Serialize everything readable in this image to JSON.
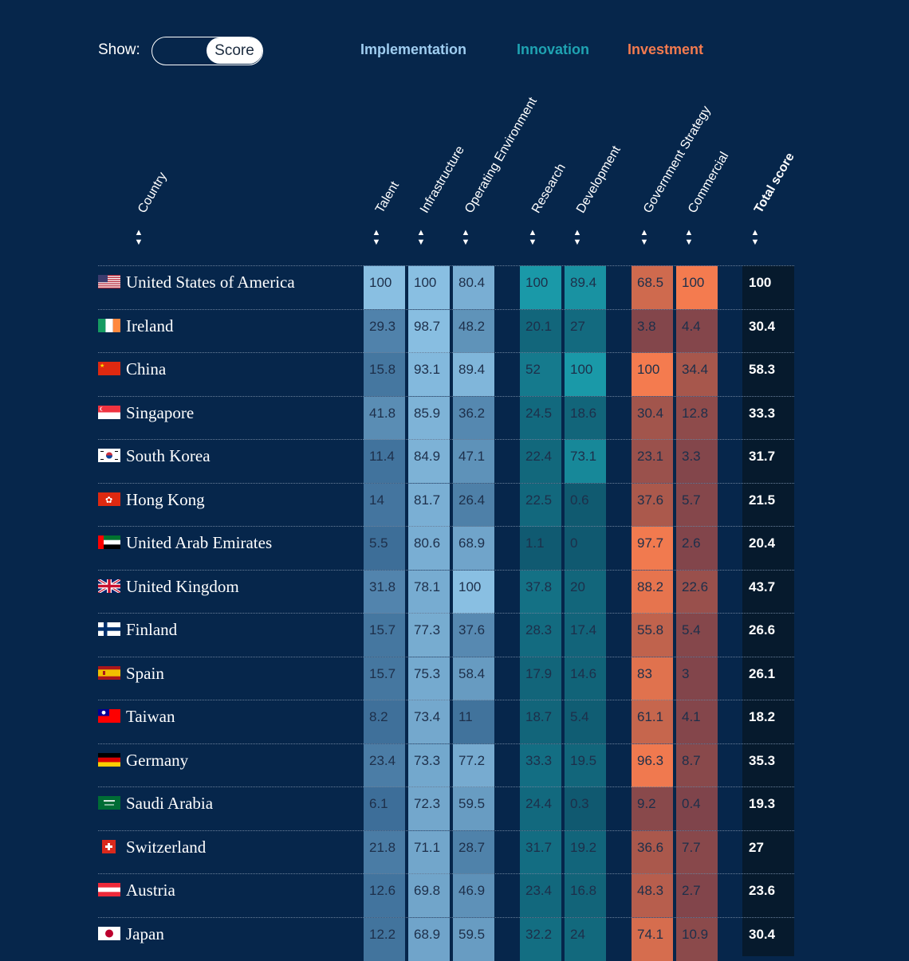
{
  "controls": {
    "show_label": "Show:",
    "toggle_value": "Score"
  },
  "colors": {
    "background": "#06264b",
    "implementation": "#8dc1e3",
    "innovation": "#1f96a6",
    "investment": "#f47b4f",
    "total": "#061a2d"
  },
  "chart_data": {
    "type": "table",
    "groups": [
      {
        "name": "Implementation",
        "color": "#7fb8de",
        "columns": [
          "Talent",
          "Infrastructure",
          "Operating Environment"
        ]
      },
      {
        "name": "Innovation",
        "color": "#1a99a8",
        "columns": [
          "Research",
          "Development"
        ]
      },
      {
        "name": "Investment",
        "color": "#f47b4f",
        "columns": [
          "Government Strategy",
          "Commercial"
        ]
      }
    ],
    "columns": [
      "Country",
      "Talent",
      "Infrastructure",
      "Operating Environment",
      "Research",
      "Development",
      "Government Strategy",
      "Commercial",
      "Total score"
    ],
    "rows": [
      {
        "country": "United States of America",
        "flag": "us-flag-icon",
        "values": [
          "100",
          "100",
          "80.4",
          "100",
          "89.4",
          "68.5",
          "100"
        ],
        "total": "100"
      },
      {
        "country": "Ireland",
        "flag": "ireland-flag-icon",
        "values": [
          "29.3",
          "98.7",
          "48.2",
          "20.1",
          "27",
          "3.8",
          "4.4"
        ],
        "total": "30.4"
      },
      {
        "country": "China",
        "flag": "china-flag-icon",
        "values": [
          "15.8",
          "93.1",
          "89.4",
          "52",
          "100",
          "100",
          "34.4"
        ],
        "total": "58.3"
      },
      {
        "country": "Singapore",
        "flag": "singapore-flag-icon",
        "values": [
          "41.8",
          "85.9",
          "36.2",
          "24.5",
          "18.6",
          "30.4",
          "12.8"
        ],
        "total": "33.3"
      },
      {
        "country": "South Korea",
        "flag": "south-korea-flag-icon",
        "values": [
          "11.4",
          "84.9",
          "47.1",
          "22.4",
          "73.1",
          "23.1",
          "3.3"
        ],
        "total": "31.7"
      },
      {
        "country": "Hong Kong",
        "flag": "hong-kong-flag-icon",
        "values": [
          "14",
          "81.7",
          "26.4",
          "22.5",
          "0.6",
          "37.6",
          "5.7"
        ],
        "total": "21.5"
      },
      {
        "country": "United Arab Emirates",
        "flag": "uae-flag-icon",
        "values": [
          "5.5",
          "80.6",
          "68.9",
          "1.1",
          "0",
          "97.7",
          "2.6"
        ],
        "total": "20.4"
      },
      {
        "country": "United Kingdom",
        "flag": "uk-flag-icon",
        "values": [
          "31.8",
          "78.1",
          "100",
          "37.8",
          "20",
          "88.2",
          "22.6"
        ],
        "total": "43.7"
      },
      {
        "country": "Finland",
        "flag": "finland-flag-icon",
        "values": [
          "15.7",
          "77.3",
          "37.6",
          "28.3",
          "17.4",
          "55.8",
          "5.4"
        ],
        "total": "26.6"
      },
      {
        "country": "Spain",
        "flag": "spain-flag-icon",
        "values": [
          "15.7",
          "75.3",
          "58.4",
          "17.9",
          "14.6",
          "83",
          "3"
        ],
        "total": "26.1"
      },
      {
        "country": "Taiwan",
        "flag": "taiwan-flag-icon",
        "values": [
          "8.2",
          "73.4",
          "11",
          "18.7",
          "5.4",
          "61.1",
          "4.1"
        ],
        "total": "18.2"
      },
      {
        "country": "Germany",
        "flag": "germany-flag-icon",
        "values": [
          "23.4",
          "73.3",
          "77.2",
          "33.3",
          "19.5",
          "96.3",
          "8.7"
        ],
        "total": "35.3"
      },
      {
        "country": "Saudi Arabia",
        "flag": "saudi-arabia-flag-icon",
        "values": [
          "6.1",
          "72.3",
          "59.5",
          "24.4",
          "0.3",
          "9.2",
          "0.4"
        ],
        "total": "19.3"
      },
      {
        "country": "Switzerland",
        "flag": "switzerland-flag-icon",
        "values": [
          "21.8",
          "71.1",
          "28.7",
          "31.7",
          "19.2",
          "36.6",
          "7.7"
        ],
        "total": "27"
      },
      {
        "country": "Austria",
        "flag": "austria-flag-icon",
        "values": [
          "12.6",
          "69.8",
          "46.9",
          "23.4",
          "16.8",
          "48.3",
          "2.7"
        ],
        "total": "23.6"
      },
      {
        "country": "Japan",
        "flag": "japan-flag-icon",
        "values": [
          "12.2",
          "68.9",
          "59.5",
          "32.2",
          "24",
          "74.1",
          "10.9"
        ],
        "total": "30.4"
      }
    ]
  }
}
